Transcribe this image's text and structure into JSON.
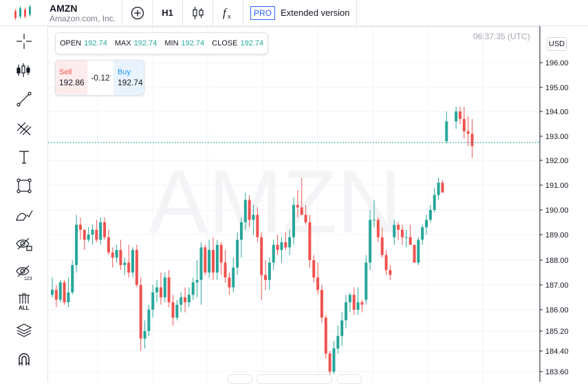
{
  "header": {
    "symbol": "AMZN",
    "description": "Amazon.com, Inc.",
    "timeframe": "H1",
    "pro_badge": "PRO",
    "extended_label": "Extended version",
    "icons": [
      "logo-candles-icon",
      "add-symbol-icon",
      "candle-type-icon",
      "indicators-fx-icon"
    ]
  },
  "toolbar": {
    "tools": [
      "crosshair",
      "candles-settings",
      "trend-line",
      "fib-retracement",
      "text",
      "rectangle",
      "brush",
      "hide-drawings",
      "hide-indicators",
      "remove-all",
      "layers",
      "magnet"
    ],
    "remove_all_label": "ALL",
    "hide_indicators_label": "123"
  },
  "legend": {
    "open_label": "OPEN",
    "open_value": "192.74",
    "max_label": "MAX",
    "max_value": "192.74",
    "min_label": "MIN",
    "min_value": "192.74",
    "close_label": "CLOSE",
    "close_value": "192.74"
  },
  "trade": {
    "sell_label": "Sell",
    "sell_price": "192.86",
    "spread": "-0.12",
    "buy_label": "Buy",
    "buy_price": "192.74"
  },
  "clock": "06:37:35 (UTC)",
  "currency": "USD",
  "watermark": "AMZN",
  "colors": {
    "up": "#26a69a",
    "down": "#ef5350",
    "grid": "#f0f3fa",
    "accent": "#2962ff"
  },
  "chart_data": {
    "type": "candlestick",
    "y_ticks": [
      "196.00",
      "195.00",
      "194.00",
      "193.00",
      "192.00",
      "191.00",
      "190.00",
      "189.00",
      "188.00",
      "187.00",
      "186.00",
      "185.20",
      "184.40",
      "183.60"
    ],
    "last_price": 192.74,
    "candles": [
      [
        186.6,
        187.3,
        186.5,
        186.8
      ],
      [
        186.8,
        187.0,
        186.1,
        186.4
      ],
      [
        186.4,
        187.2,
        186.3,
        187.1
      ],
      [
        187.1,
        187.2,
        186.2,
        186.3
      ],
      [
        186.3,
        187.3,
        186.1,
        186.7
      ],
      [
        186.7,
        188.0,
        186.6,
        187.8
      ],
      [
        187.8,
        189.8,
        187.5,
        189.4
      ],
      [
        189.4,
        189.7,
        188.8,
        189.2
      ],
      [
        189.2,
        189.2,
        188.4,
        188.8
      ],
      [
        188.8,
        189.3,
        188.7,
        189.0
      ],
      [
        189.0,
        189.4,
        188.6,
        189.2
      ],
      [
        189.2,
        189.6,
        188.7,
        188.8
      ],
      [
        188.8,
        189.7,
        188.6,
        189.5
      ],
      [
        189.5,
        189.7,
        188.8,
        188.9
      ],
      [
        188.9,
        189.2,
        188.2,
        188.3
      ],
      [
        188.3,
        188.5,
        187.7,
        188.1
      ],
      [
        188.1,
        188.6,
        187.9,
        188.4
      ],
      [
        188.4,
        188.8,
        187.6,
        187.8
      ],
      [
        187.8,
        188.1,
        187.4,
        187.9
      ],
      [
        187.9,
        188.6,
        187.3,
        187.5
      ],
      [
        187.5,
        188.5,
        187.3,
        188.4
      ],
      [
        188.4,
        188.6,
        186.9,
        187.0
      ],
      [
        187.0,
        187.3,
        184.4,
        184.9
      ],
      [
        184.9,
        185.6,
        184.5,
        185.2
      ],
      [
        185.2,
        186.2,
        185.0,
        186.0
      ],
      [
        186.0,
        187.0,
        185.7,
        186.7
      ],
      [
        186.7,
        187.2,
        186.3,
        186.9
      ],
      [
        186.9,
        187.5,
        186.2,
        186.5
      ],
      [
        186.5,
        187.5,
        186.3,
        187.3
      ],
      [
        187.3,
        187.6,
        186.1,
        186.3
      ],
      [
        186.3,
        186.6,
        185.4,
        185.7
      ],
      [
        185.7,
        186.4,
        185.6,
        186.2
      ],
      [
        186.2,
        186.7,
        185.9,
        186.5
      ],
      [
        186.5,
        186.9,
        185.9,
        186.3
      ],
      [
        186.3,
        186.9,
        186.1,
        186.6
      ],
      [
        186.6,
        187.3,
        186.4,
        187.1
      ],
      [
        187.1,
        188.0,
        186.5,
        187.2
      ],
      [
        187.2,
        188.7,
        186.2,
        188.5
      ],
      [
        188.5,
        188.6,
        187.4,
        187.5
      ],
      [
        187.5,
        188.8,
        187.3,
        188.4
      ],
      [
        188.4,
        188.9,
        187.2,
        187.5
      ],
      [
        187.5,
        188.8,
        187.2,
        188.6
      ],
      [
        188.6,
        188.7,
        187.4,
        187.9
      ],
      [
        187.9,
        188.4,
        187.1,
        187.3
      ],
      [
        187.3,
        187.5,
        186.6,
        186.9
      ],
      [
        186.9,
        188.1,
        186.7,
        187.7
      ],
      [
        187.7,
        189.1,
        187.4,
        188.8
      ],
      [
        188.8,
        189.7,
        188.1,
        189.5
      ],
      [
        189.5,
        190.7,
        189.2,
        190.4
      ],
      [
        190.4,
        190.6,
        189.3,
        189.6
      ],
      [
        189.6,
        190.2,
        189.0,
        189.8
      ],
      [
        189.8,
        190.1,
        188.7,
        188.9
      ],
      [
        188.9,
        189.1,
        186.4,
        187.4
      ],
      [
        187.4,
        188.0,
        186.8,
        187.2
      ],
      [
        187.2,
        188.1,
        186.8,
        187.9
      ],
      [
        187.9,
        188.8,
        187.6,
        188.6
      ],
      [
        188.6,
        189.0,
        188.2,
        188.4
      ],
      [
        188.4,
        188.9,
        187.9,
        188.7
      ],
      [
        188.7,
        189.1,
        188.4,
        188.5
      ],
      [
        188.5,
        189.2,
        188.2,
        188.9
      ],
      [
        188.9,
        190.5,
        188.6,
        190.2
      ],
      [
        190.2,
        190.8,
        189.7,
        190.1
      ],
      [
        190.1,
        191.3,
        189.8,
        189.8
      ],
      [
        189.8,
        190.2,
        189.4,
        189.5
      ],
      [
        189.5,
        189.8,
        187.7,
        188.0
      ],
      [
        188.0,
        188.2,
        187.1,
        187.3
      ],
      [
        187.3,
        187.9,
        186.6,
        186.8
      ],
      [
        186.8,
        187.0,
        185.5,
        185.7
      ],
      [
        185.7,
        185.8,
        184.1,
        184.3
      ],
      [
        184.3,
        184.4,
        183.4,
        183.6
      ],
      [
        183.6,
        184.8,
        183.5,
        184.5
      ],
      [
        184.5,
        185.4,
        184.3,
        185.0
      ],
      [
        185.0,
        185.9,
        184.6,
        185.6
      ],
      [
        185.6,
        186.6,
        185.3,
        186.3
      ],
      [
        186.3,
        186.7,
        185.9,
        186.6
      ],
      [
        186.6,
        186.9,
        185.8,
        186.0
      ],
      [
        186.0,
        186.9,
        185.8,
        186.3
      ],
      [
        186.3,
        186.4,
        185.9,
        186.2
      ],
      [
        186.4,
        188.2,
        186.2,
        187.9
      ],
      [
        187.9,
        190.0,
        187.6,
        189.6
      ],
      [
        189.6,
        190.4,
        189.3,
        189.6
      ],
      [
        189.6,
        189.7,
        188.7,
        188.9
      ],
      [
        188.9,
        189.3,
        188.1,
        188.2
      ],
      [
        188.2,
        188.4,
        187.4,
        187.6
      ],
      [
        187.6,
        187.8,
        187.2,
        187.4
      ],
      [
        188.9,
        189.6,
        188.6,
        189.4
      ],
      [
        189.4,
        189.5,
        188.8,
        189.2
      ],
      [
        189.2,
        189.4,
        188.6,
        188.9
      ],
      [
        188.9,
        189.2,
        188.5,
        188.9
      ],
      [
        188.9,
        189.4,
        188.6,
        188.6
      ],
      [
        188.6,
        188.6,
        187.9,
        187.9
      ],
      [
        187.9,
        188.9,
        187.8,
        188.8
      ],
      [
        188.8,
        189.4,
        188.6,
        189.3
      ],
      [
        189.3,
        189.8,
        189.0,
        189.6
      ],
      [
        189.6,
        190.2,
        189.5,
        190.0
      ],
      [
        190.0,
        190.9,
        189.9,
        190.6
      ],
      [
        190.6,
        191.3,
        190.4,
        191.1
      ],
      [
        191.1,
        191.2,
        190.7,
        190.7
      ],
      [
        192.8,
        194.0,
        192.7,
        193.6
      ],
      [
        193.6,
        194.2,
        193.3,
        194.0
      ],
      [
        194.0,
        194.2,
        193.5,
        193.7
      ],
      [
        193.7,
        194.2,
        192.9,
        193.2
      ],
      [
        193.2,
        193.8,
        192.6,
        193.1
      ],
      [
        193.1,
        193.7,
        192.1,
        192.6
      ]
    ]
  }
}
